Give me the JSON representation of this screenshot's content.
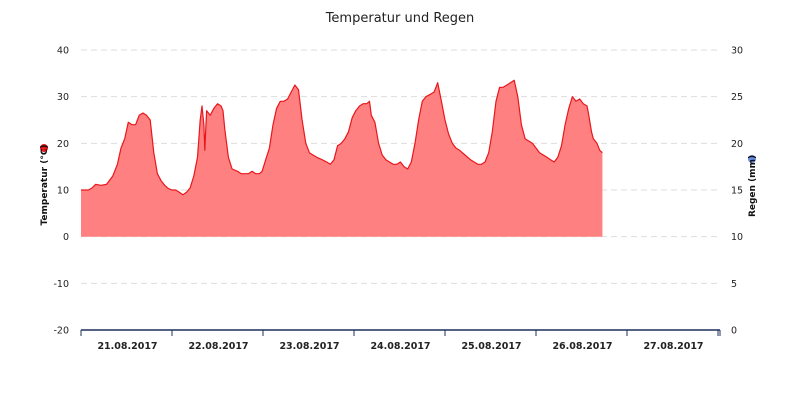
{
  "chart_data": {
    "type": "area",
    "title": "Temperatur und Regen",
    "ylabel_left": "Temperatur (°C)",
    "ylabel_right": "Regen (mm)",
    "y_left_range": [
      -20,
      40
    ],
    "y_left_ticks": [
      "-20",
      "-10",
      "0",
      "10",
      "20",
      "30",
      "40"
    ],
    "y_right_range": [
      0,
      30
    ],
    "y_right_ticks": [
      "0",
      "5",
      "10",
      "15",
      "20",
      "25",
      "30"
    ],
    "x_labels": [
      "21.08.2017",
      "22.08.2017",
      "23.08.2017",
      "24.08.2017",
      "25.08.2017",
      "26.08.2017",
      "27.08.2017"
    ],
    "grid": "horizontal-dashed",
    "colors": {
      "temperature_line": "#e8171c",
      "temperature_fill": "#ff8080",
      "temperature_marker": "#e8171c",
      "rain_marker": "#6d8fe6",
      "axis_line": "#1f2f5a",
      "grid": "#dddddd"
    },
    "series": [
      {
        "name": "Temperatur (°C)",
        "x_unit": "days from start of plotted range",
        "points": [
          [
            0.0,
            10.0
          ],
          [
            0.08,
            10.0
          ],
          [
            0.12,
            10.4
          ],
          [
            0.16,
            11.2
          ],
          [
            0.22,
            11.0
          ],
          [
            0.28,
            11.2
          ],
          [
            0.35,
            13.0
          ],
          [
            0.4,
            15.5
          ],
          [
            0.44,
            19.0
          ],
          [
            0.48,
            21.0
          ],
          [
            0.52,
            24.5
          ],
          [
            0.56,
            24.0
          ],
          [
            0.6,
            24.0
          ],
          [
            0.64,
            26.0
          ],
          [
            0.68,
            26.5
          ],
          [
            0.72,
            26.0
          ],
          [
            0.76,
            25.0
          ],
          [
            0.8,
            18.0
          ],
          [
            0.84,
            13.5
          ],
          [
            0.88,
            12.0
          ],
          [
            0.92,
            11.0
          ],
          [
            0.96,
            10.3
          ],
          [
            1.0,
            10.0
          ],
          [
            1.04,
            10.0
          ],
          [
            1.08,
            9.5
          ],
          [
            1.12,
            9.0
          ],
          [
            1.16,
            9.5
          ],
          [
            1.2,
            10.5
          ],
          [
            1.24,
            13.0
          ],
          [
            1.28,
            17.0
          ],
          [
            1.31,
            25.0
          ],
          [
            1.33,
            28.0
          ],
          [
            1.35,
            24.0
          ],
          [
            1.36,
            18.5
          ],
          [
            1.38,
            27.0
          ],
          [
            1.42,
            26.0
          ],
          [
            1.46,
            27.5
          ],
          [
            1.5,
            28.5
          ],
          [
            1.54,
            28.0
          ],
          [
            1.56,
            27.0
          ],
          [
            1.58,
            23.0
          ],
          [
            1.62,
            17.0
          ],
          [
            1.66,
            14.5
          ],
          [
            1.72,
            14.0
          ],
          [
            1.76,
            13.5
          ],
          [
            1.8,
            13.5
          ],
          [
            1.84,
            13.5
          ],
          [
            1.88,
            14.0
          ],
          [
            1.92,
            13.5
          ],
          [
            1.96,
            13.5
          ],
          [
            1.99,
            14.0
          ],
          [
            2.03,
            16.5
          ],
          [
            2.07,
            19.0
          ],
          [
            2.11,
            24.0
          ],
          [
            2.15,
            27.5
          ],
          [
            2.19,
            29.0
          ],
          [
            2.23,
            29.0
          ],
          [
            2.27,
            29.5
          ],
          [
            2.31,
            31.0
          ],
          [
            2.35,
            32.5
          ],
          [
            2.39,
            31.5
          ],
          [
            2.43,
            25.0
          ],
          [
            2.47,
            20.0
          ],
          [
            2.51,
            18.0
          ],
          [
            2.55,
            17.5
          ],
          [
            2.59,
            17.0
          ],
          [
            2.65,
            16.5
          ],
          [
            2.7,
            16.0
          ],
          [
            2.74,
            15.5
          ],
          [
            2.78,
            16.5
          ],
          [
            2.82,
            19.5
          ],
          [
            2.86,
            20.0
          ],
          [
            2.9,
            21.0
          ],
          [
            2.94,
            22.5
          ],
          [
            2.98,
            25.5
          ],
          [
            3.02,
            27.0
          ],
          [
            3.06,
            28.0
          ],
          [
            3.1,
            28.5
          ],
          [
            3.14,
            28.5
          ],
          [
            3.17,
            29.0
          ],
          [
            3.19,
            26.0
          ],
          [
            3.23,
            24.5
          ],
          [
            3.27,
            20.0
          ],
          [
            3.31,
            17.5
          ],
          [
            3.35,
            16.5
          ],
          [
            3.39,
            16.0
          ],
          [
            3.43,
            15.5
          ],
          [
            3.47,
            15.5
          ],
          [
            3.51,
            16.0
          ],
          [
            3.55,
            15.0
          ],
          [
            3.59,
            14.5
          ],
          [
            3.63,
            16.0
          ],
          [
            3.67,
            20.0
          ],
          [
            3.71,
            25.0
          ],
          [
            3.75,
            29.0
          ],
          [
            3.79,
            30.0
          ],
          [
            3.84,
            30.5
          ],
          [
            3.88,
            31.0
          ],
          [
            3.92,
            33.0
          ],
          [
            3.96,
            29.0
          ],
          [
            4.0,
            25.0
          ],
          [
            4.04,
            22.0
          ],
          [
            4.08,
            20.0
          ],
          [
            4.12,
            19.0
          ],
          [
            4.16,
            18.5
          ],
          [
            4.22,
            17.5
          ],
          [
            4.28,
            16.5
          ],
          [
            4.32,
            16.0
          ],
          [
            4.36,
            15.5
          ],
          [
            4.4,
            15.5
          ],
          [
            4.44,
            16.0
          ],
          [
            4.48,
            18.0
          ],
          [
            4.52,
            22.5
          ],
          [
            4.56,
            29.0
          ],
          [
            4.6,
            32.0
          ],
          [
            4.64,
            32.0
          ],
          [
            4.68,
            32.5
          ],
          [
            4.72,
            33.0
          ],
          [
            4.76,
            33.5
          ],
          [
            4.8,
            30.0
          ],
          [
            4.84,
            24.0
          ],
          [
            4.88,
            21.0
          ],
          [
            4.92,
            20.5
          ],
          [
            4.96,
            20.0
          ],
          [
            5.0,
            19.0
          ],
          [
            5.04,
            18.0
          ],
          [
            5.08,
            17.5
          ],
          [
            5.12,
            17.0
          ],
          [
            5.16,
            16.5
          ],
          [
            5.2,
            16.0
          ],
          [
            5.24,
            17.0
          ],
          [
            5.28,
            19.5
          ],
          [
            5.32,
            24.0
          ],
          [
            5.36,
            27.5
          ],
          [
            5.4,
            30.0
          ],
          [
            5.44,
            29.0
          ],
          [
            5.48,
            29.5
          ],
          [
            5.52,
            28.5
          ],
          [
            5.56,
            28.0
          ],
          [
            5.58,
            26.0
          ],
          [
            5.61,
            22.5
          ],
          [
            5.63,
            21.0
          ],
          [
            5.67,
            20.0
          ],
          [
            5.7,
            18.5
          ],
          [
            5.73,
            18.0
          ]
        ]
      }
    ],
    "markers": [
      {
        "name": "Temperatur (°C)",
        "axis": "left",
        "color": "#e8171c"
      },
      {
        "name": "Regen (mm)",
        "axis": "right",
        "color": "#6d8fe6"
      }
    ]
  }
}
